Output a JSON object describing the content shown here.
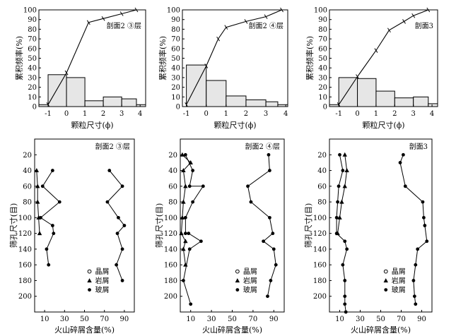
{
  "chart_data": [
    {
      "type": "bar",
      "panel_label": "剖面2 ③层",
      "ylabel": "累积频率(%)",
      "xlabel": "颗粒尺寸(ϕ)",
      "xlim": [
        -1.5,
        4.3
      ],
      "ylim": [
        0,
        100
      ],
      "x_ticks": [
        "-1",
        "0",
        "1",
        "2",
        "3",
        "4"
      ],
      "y_ticks": [
        "0",
        "10",
        "20",
        "30",
        "40",
        "50",
        "60",
        "70",
        "80",
        "90",
        "100"
      ],
      "histogram": [
        {
          "x0": -1.5,
          "x1": -1.0,
          "value": 2
        },
        {
          "x0": -1.0,
          "x1": 0.0,
          "value": 33
        },
        {
          "x0": 0.0,
          "x1": 1.0,
          "value": 30
        },
        {
          "x0": 1.0,
          "x1": 2.0,
          "value": 6
        },
        {
          "x0": 2.0,
          "x1": 3.0,
          "value": 10
        },
        {
          "x0": 3.0,
          "x1": 3.8,
          "value": 8
        },
        {
          "x0": 3.8,
          "x1": 4.3,
          "value": 2
        }
      ],
      "cumulative_curve": {
        "x": [
          -1.0,
          0.0,
          1.2,
          2.0,
          3.0,
          3.8
        ],
        "y": [
          2,
          35,
          87,
          91,
          96,
          100
        ]
      }
    },
    {
      "type": "bar",
      "panel_label": "剖面2 ④层",
      "ylabel": "累积频率(%)",
      "xlabel": "颗粒尺寸(ϕ)",
      "xlim": [
        -1.2,
        4.1
      ],
      "ylim": [
        0,
        100
      ],
      "x_ticks": [
        "-1",
        "0",
        "1",
        "2",
        "3",
        "4"
      ],
      "y_ticks": [
        "0",
        "10",
        "20",
        "30",
        "40",
        "50",
        "60",
        "70",
        "80",
        "90",
        "100"
      ],
      "histogram": [
        {
          "x0": -1.0,
          "x1": 0.0,
          "value": 43
        },
        {
          "x0": 0.0,
          "x1": 1.0,
          "value": 27
        },
        {
          "x0": 1.0,
          "x1": 2.0,
          "value": 11
        },
        {
          "x0": 2.0,
          "x1": 3.0,
          "value": 7
        },
        {
          "x0": 3.0,
          "x1": 3.6,
          "value": 5
        },
        {
          "x0": 3.6,
          "x1": 4.1,
          "value": 2
        }
      ],
      "cumulative_curve": {
        "x": [
          -1.0,
          0.0,
          0.6,
          1.0,
          2.0,
          3.0,
          3.8
        ],
        "y": [
          2,
          42,
          70,
          82,
          88,
          93,
          100
        ]
      }
    },
    {
      "type": "bar",
      "panel_label": "剖面3",
      "ylabel": "累积频率(%)",
      "xlabel": "颗粒尺寸(ϕ)",
      "xlim": [
        -1.5,
        4.3
      ],
      "ylim": [
        0,
        100
      ],
      "x_ticks": [
        "-1",
        "0",
        "1",
        "2",
        "3",
        "4"
      ],
      "y_ticks": [
        "0",
        "10",
        "20",
        "30",
        "40",
        "50",
        "60",
        "70",
        "80",
        "90",
        "100"
      ],
      "histogram": [
        {
          "x0": -1.5,
          "x1": -1.0,
          "value": 2
        },
        {
          "x0": -1.0,
          "x1": 0.0,
          "value": 30
        },
        {
          "x0": 0.0,
          "x1": 1.0,
          "value": 29
        },
        {
          "x0": 1.0,
          "x1": 2.0,
          "value": 16
        },
        {
          "x0": 2.0,
          "x1": 3.0,
          "value": 9
        },
        {
          "x0": 3.0,
          "x1": 3.8,
          "value": 10
        },
        {
          "x0": 3.8,
          "x1": 4.3,
          "value": 3
        }
      ],
      "cumulative_curve": {
        "x": [
          -1.0,
          0.0,
          1.0,
          1.7,
          2.5,
          3.0,
          3.8
        ],
        "y": [
          2,
          31,
          58,
          79,
          88,
          94,
          100
        ]
      }
    },
    {
      "type": "line",
      "panel_label": "剖面2 ③层",
      "ylabel": "筛孔尺寸(目)",
      "xlabel": "火山碎屑含量(%)",
      "xlim": [
        0,
        100
      ],
      "ylim": [
        0,
        220
      ],
      "y_inverted": true,
      "x_ticks": [
        "10",
        "30",
        "50",
        "70",
        "90"
      ],
      "y_ticks": [
        "20",
        "40",
        "60",
        "80",
        "100",
        "120",
        "140",
        "160",
        "180",
        "200"
      ],
      "legend": [
        "晶屑",
        "岩屑",
        "玻屑"
      ],
      "series": [
        {
          "marker": "triangle",
          "x": [
            2,
            3,
            3,
            4,
            5
          ],
          "y": [
            40,
            60,
            80,
            100,
            120
          ]
        },
        {
          "marker": "dot",
          "x": [
            18,
            8,
            25,
            6,
            18,
            19,
            12,
            14
          ],
          "y": [
            40,
            60,
            80,
            100,
            110,
            120,
            140,
            160
          ]
        },
        {
          "marker": "dot",
          "x": [
            75,
            88,
            73,
            84,
            90,
            83,
            88,
            82,
            88
          ],
          "y": [
            40,
            60,
            80,
            100,
            110,
            120,
            140,
            160,
            180
          ]
        }
      ]
    },
    {
      "type": "line",
      "panel_label": "剖面2 ④层",
      "ylabel": "筛孔尺寸(目)",
      "xlabel": "火山碎屑含量(%)",
      "xlim": [
        0,
        100
      ],
      "ylim": [
        0,
        220
      ],
      "y_inverted": true,
      "x_ticks": [
        "10",
        "30",
        "50",
        "70",
        "90"
      ],
      "y_ticks": [
        "20",
        "40",
        "60",
        "80",
        "100",
        "120",
        "140",
        "160",
        "180",
        "200"
      ],
      "legend": [
        "晶屑",
        "岩屑",
        "玻屑"
      ],
      "series": [
        {
          "marker": "triangle",
          "x": [
            2,
            10,
            3,
            5,
            3,
            2,
            1,
            5,
            3,
            5
          ],
          "y": [
            20,
            30,
            40,
            60,
            80,
            100,
            120,
            130,
            140,
            160
          ]
        },
        {
          "marker": "dot",
          "x": [
            5,
            12,
            9,
            22,
            12,
            5,
            5,
            8,
            20,
            9,
            3,
            10
          ],
          "y": [
            20,
            40,
            60,
            60,
            80,
            100,
            120,
            120,
            130,
            140,
            180,
            210
          ]
        },
        {
          "marker": "dot",
          "x": [
            85,
            86,
            65,
            68,
            86,
            89,
            80,
            90,
            92,
            87,
            84
          ],
          "y": [
            20,
            40,
            60,
            80,
            100,
            120,
            130,
            140,
            160,
            180,
            200
          ]
        }
      ]
    },
    {
      "type": "line",
      "panel_label": "剖面3",
      "ylabel": "筛孔尺寸(目)",
      "xlabel": "火山碎屑含量(%)",
      "xlim": [
        0,
        100
      ],
      "ylim": [
        0,
        220
      ],
      "y_inverted": true,
      "x_ticks": [
        "10",
        "30",
        "50",
        "70",
        "90"
      ],
      "y_ticks": [
        "20",
        "40",
        "60",
        "80",
        "100",
        "120",
        "140",
        "160",
        "180",
        "200"
      ],
      "legend": [
        "晶屑",
        "岩屑",
        "玻屑"
      ],
      "series": [
        {
          "marker": "triangle",
          "x": [
            15,
            17,
            15,
            12,
            10,
            8
          ],
          "y": [
            20,
            40,
            60,
            80,
            100,
            120
          ]
        },
        {
          "marker": "dot",
          "x": [
            10,
            13,
            9,
            8,
            7,
            7,
            15,
            17,
            13,
            15,
            15,
            15,
            16
          ],
          "y": [
            20,
            40,
            60,
            80,
            100,
            120,
            130,
            140,
            160,
            180,
            200,
            210,
            220
          ]
        },
        {
          "marker": "dot",
          "x": [
            72,
            69,
            74,
            91,
            92,
            93,
            95,
            86,
            84,
            82,
            83,
            84
          ],
          "y": [
            20,
            30,
            60,
            80,
            100,
            110,
            130,
            140,
            160,
            180,
            200,
            210
          ]
        }
      ]
    }
  ]
}
